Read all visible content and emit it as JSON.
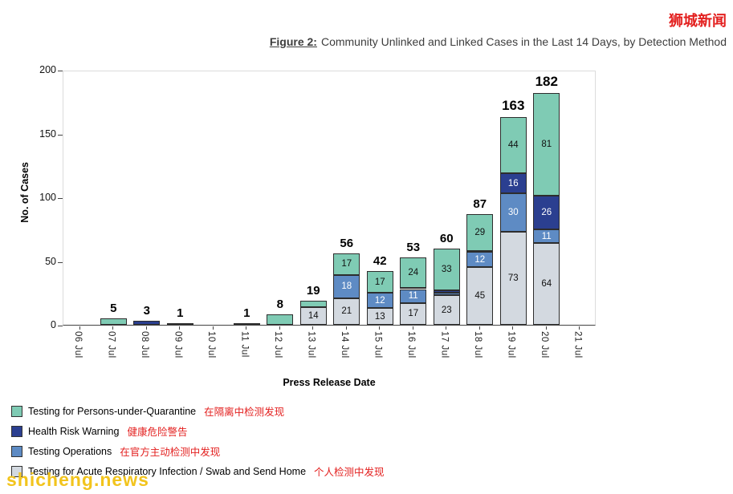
{
  "brand": {
    "site_logo": "狮城新闻",
    "logo_color": "#e3201f",
    "watermark": "shicheng.news",
    "watermark_color": "#f2c41d"
  },
  "title": {
    "prefix": "Figure 2:",
    "rest": "Community Unlinked and Linked Cases in the Last 14 Days, by Detection Method"
  },
  "chart_data": {
    "type": "bar",
    "stacked": true,
    "title": "Figure 2: Community Unlinked and Linked Cases in the Last 14 Days, by Detection Method",
    "xlabel": "Press Release Date",
    "ylabel": "No. of Cases",
    "ylim": [
      0,
      200
    ],
    "yticks": [
      0,
      50,
      100,
      150,
      200
    ],
    "grid": false,
    "legend_position": "bottom-left",
    "label_min_value": 11,
    "categories": [
      "06 Jul",
      "07 Jul",
      "08 Jul",
      "09 Jul",
      "10 Jul",
      "11 Jul",
      "12 Jul",
      "13 Jul",
      "14 Jul",
      "15 Jul",
      "16 Jul",
      "17 Jul",
      "18 Jul",
      "19 Jul",
      "20 Jul",
      "21 Jul"
    ],
    "totals": [
      0,
      5,
      3,
      1,
      0,
      1,
      8,
      19,
      56,
      42,
      53,
      60,
      87,
      163,
      182,
      0
    ],
    "series": [
      {
        "name": "Testing for Acute Respiratory Infection / Swab and Send Home",
        "color": "#d3d9e0",
        "label_color": "#111111",
        "values": [
          0,
          0,
          0,
          0,
          0,
          0,
          0,
          14,
          21,
          13,
          17,
          23,
          45,
          73,
          64,
          0
        ]
      },
      {
        "name": "Testing Operations",
        "color": "#5e8bc4",
        "label_color": "#ffffff",
        "values": [
          0,
          0,
          0,
          0,
          0,
          0,
          0,
          0,
          18,
          12,
          11,
          2,
          12,
          30,
          11,
          0
        ]
      },
      {
        "name": "Health Risk Warning",
        "color": "#2b3f90",
        "label_color": "#ffffff",
        "values": [
          0,
          0,
          3,
          1,
          0,
          1,
          0,
          0,
          0,
          0,
          1,
          2,
          1,
          16,
          26,
          0
        ]
      },
      {
        "name": "Testing for Persons-under-Quarantine",
        "color": "#7fcbb4",
        "label_color": "#111111",
        "values": [
          0,
          5,
          0,
          0,
          0,
          0,
          8,
          5,
          17,
          17,
          24,
          33,
          29,
          44,
          81,
          0
        ]
      }
    ]
  },
  "legend": {
    "annotation_color": "#e3201f",
    "items": [
      {
        "label": "Testing for Persons-under-Quarantine",
        "zh": "在隔离中检测发现",
        "color": "#7fcbb4"
      },
      {
        "label": "Health Risk Warning",
        "zh": "健康危险警告",
        "color": "#2b3f90"
      },
      {
        "label": "Testing Operations",
        "zh": "在官方主动检测中发现",
        "color": "#5e8bc4"
      },
      {
        "label": "Testing for Acute Respiratory Infection / Swab and Send Home",
        "zh": "个人检测中发现",
        "color": "#d3d9e0"
      }
    ]
  }
}
